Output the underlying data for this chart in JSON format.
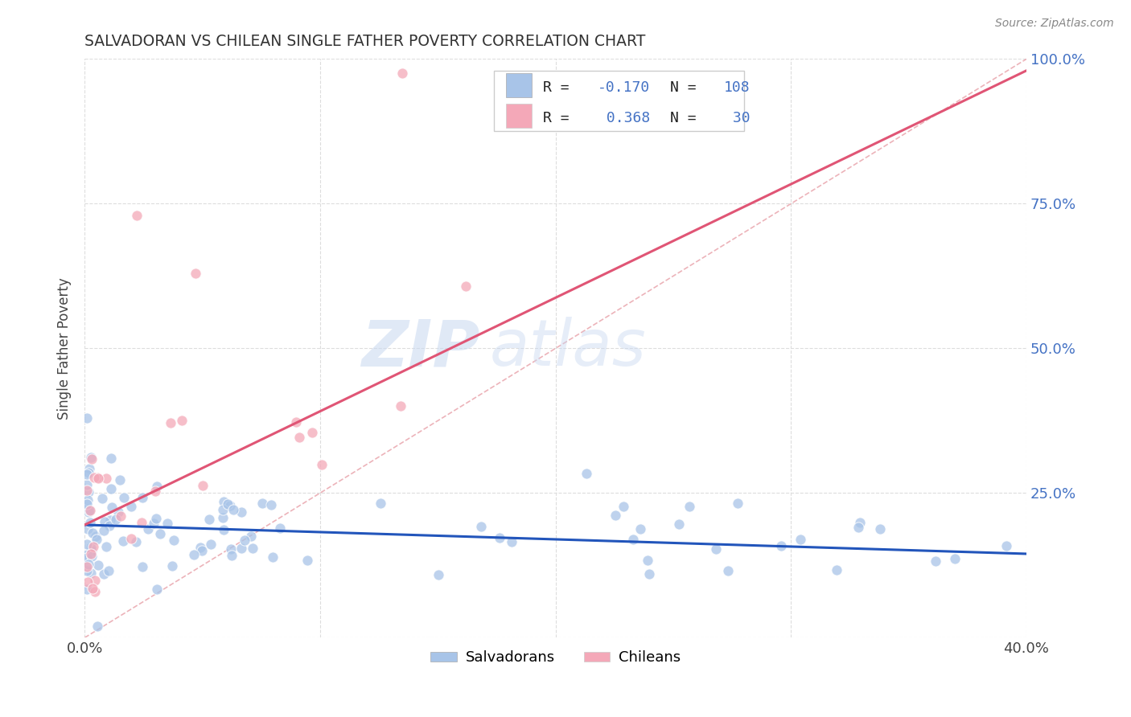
{
  "title": "SALVADORAN VS CHILEAN SINGLE FATHER POVERTY CORRELATION CHART",
  "source": "Source: ZipAtlas.com",
  "ylabel": "Single Father Poverty",
  "xlim": [
    0.0,
    0.4
  ],
  "ylim": [
    0.0,
    1.0
  ],
  "r_salvadoran": -0.17,
  "n_salvadoran": 108,
  "r_chilean": 0.368,
  "n_chilean": 30,
  "color_salvadoran": "#a8c4e8",
  "color_chilean": "#f4a8b8",
  "color_line_salvadoran": "#2255bb",
  "color_line_chilean": "#e05575",
  "color_diagonal": "#e8a0a8",
  "color_text_blue": "#4472c4",
  "background_color": "#ffffff",
  "grid_color": "#dddddd",
  "watermark_zip": "ZIP",
  "watermark_atlas": "atlas",
  "legend_label_salvadoran": "Salvadorans",
  "legend_label_chilean": "Chileans",
  "salv_trend_x0": 0.0,
  "salv_trend_y0": 0.195,
  "salv_trend_x1": 0.4,
  "salv_trend_y1": 0.145,
  "chil_trend_x0": 0.0,
  "chil_trend_y0": 0.195,
  "chil_trend_x1": 0.4,
  "chil_trend_y1": 0.98
}
